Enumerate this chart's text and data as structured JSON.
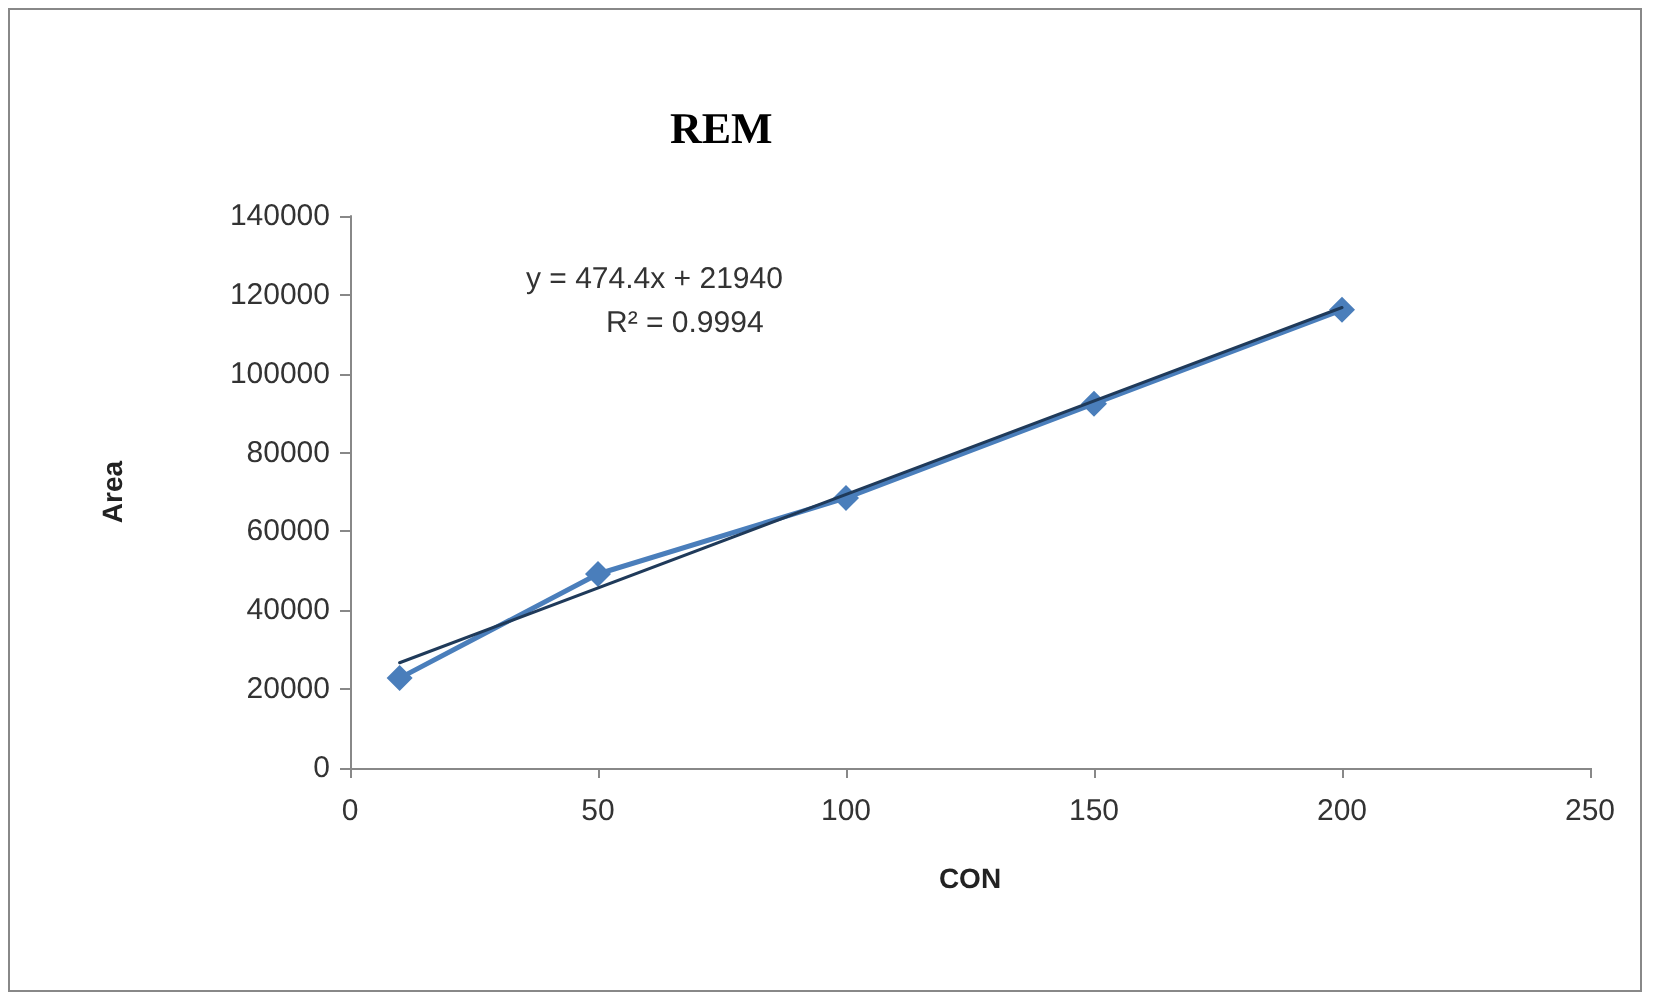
{
  "chart_data": {
    "type": "line",
    "title": "REM",
    "xlabel": "CON",
    "ylabel": "Area",
    "annotations": [
      "y = 474.4x + 21940",
      "R² = 0.9994"
    ],
    "xlim": [
      0,
      250
    ],
    "xticks": [
      0,
      50,
      100,
      150,
      200,
      250
    ],
    "ylim": [
      0,
      140000
    ],
    "yticks": [
      0,
      20000,
      40000,
      60000,
      80000,
      100000,
      120000,
      140000
    ],
    "grid": false,
    "marker": "diamond",
    "line_style": "solid",
    "series": [
      {
        "x": [
          10,
          50,
          100,
          150,
          200
        ],
        "values": [
          22800,
          49200,
          68500,
          92400,
          116200
        ],
        "color": "#4a7ebb"
      },
      {
        "type": "line",
        "marker": "none",
        "x": [
          10,
          200
        ],
        "values": [
          26700,
          116800
        ],
        "color": "#1f3a5a"
      }
    ]
  }
}
